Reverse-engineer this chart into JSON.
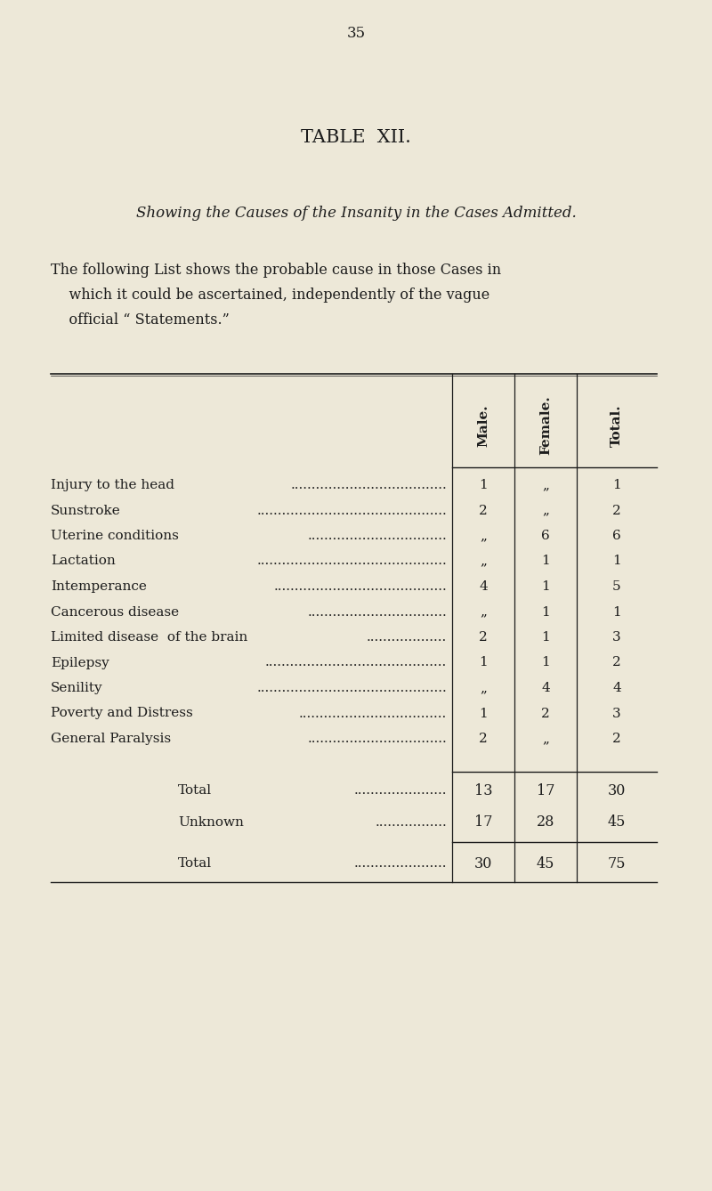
{
  "page_number": "35",
  "title": "TABLE  XII.",
  "subtitle": "Showing the Causes of the Insanity in the Cases Admitted.",
  "para_line1": "The following List shows the probable cause in those Cases in",
  "para_line2": "    which it could be ascertained, independently of the vague",
  "para_line3": "    official “ Statements.”",
  "bg_color": "#ede8d8",
  "text_color": "#1c1c1c",
  "col_headers": [
    "Male.",
    "Female.",
    "Total."
  ],
  "rows": [
    {
      "label": "Injury to the head",
      "dots": ".....................................",
      "male": "1",
      "female": "„",
      "total": "1"
    },
    {
      "label": "Sunstroke",
      "dots": ".............................................",
      "male": "2",
      "female": "„",
      "total": "2"
    },
    {
      "label": "Uterine conditions",
      "dots": ".................................",
      "male": "„",
      "female": "6",
      "total": "6"
    },
    {
      "label": "Lactation",
      "dots": ".............................................",
      "male": "„",
      "female": "1",
      "total": "1"
    },
    {
      "label": "Intemperance",
      "dots": ".........................................",
      "male": "4",
      "female": "1",
      "total": "5"
    },
    {
      "label": "Cancerous disease",
      "dots": ".................................",
      "male": "„",
      "female": "1",
      "total": "1"
    },
    {
      "label": "Limited disease  of the brain",
      "dots": "...................",
      "male": "2",
      "female": "1",
      "total": "3"
    },
    {
      "label": "Epilepsy",
      "dots": "...........................................",
      "male": "1",
      "female": "1",
      "total": "2"
    },
    {
      "label": "Senility",
      "dots": ".............................................",
      "male": "„",
      "female": "4",
      "total": "4"
    },
    {
      "label": "Poverty and Distress",
      "dots": "...................................",
      "male": "1",
      "female": "2",
      "total": "3"
    },
    {
      "label": "General Paralysis",
      "dots": ".................................",
      "male": "2",
      "female": "„",
      "total": "2"
    }
  ],
  "total_row": {
    "label": "Total",
    "dots": "......................",
    "male": "13",
    "female": "17",
    "total": "30"
  },
  "unknown_row": {
    "label": "Unknown",
    "dots": ".................",
    "male": "17",
    "female": "28",
    "total": "45"
  },
  "grand_total": {
    "label": "Total",
    "dots": "......................",
    "male": "30",
    "female": "45",
    "total": "75"
  }
}
